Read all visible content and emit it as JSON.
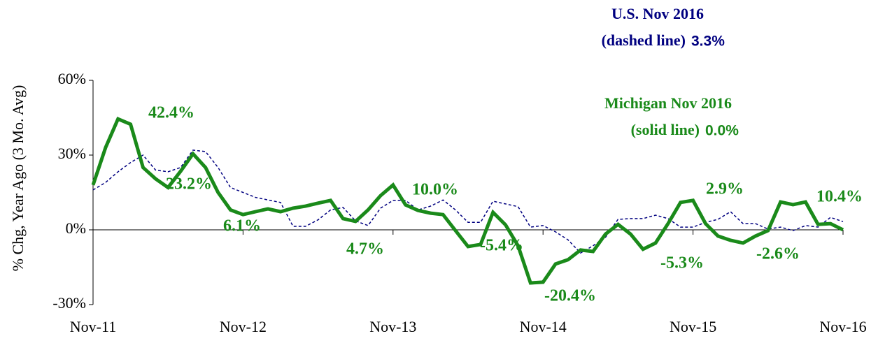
{
  "chart_data": {
    "type": "line",
    "y_axis_label": "% Chg, Year Ago (3 Mo. Avg)",
    "categories": [
      "Nov-11",
      null,
      null,
      null,
      null,
      null,
      null,
      null,
      null,
      null,
      null,
      null,
      "Nov-12",
      null,
      null,
      null,
      null,
      null,
      null,
      null,
      null,
      null,
      null,
      null,
      "Nov-13",
      null,
      null,
      null,
      null,
      null,
      null,
      null,
      null,
      null,
      null,
      null,
      "Nov-14",
      null,
      null,
      null,
      null,
      null,
      null,
      null,
      null,
      null,
      null,
      null,
      "Nov-15",
      null,
      null,
      null,
      null,
      null,
      null,
      null,
      null,
      null,
      null,
      null,
      "Nov-16"
    ],
    "series": [
      {
        "name": "Michigan",
        "color": "#1a8a1a",
        "style": "solid",
        "values": [
          18,
          33,
          44.5,
          42.4,
          25,
          20.5,
          17,
          23.5,
          30.5,
          25,
          15,
          8,
          6.1,
          7.3,
          8.4,
          7.3,
          8.7,
          9.5,
          10.7,
          11.8,
          4.5,
          3.4,
          8,
          13.7,
          18,
          10,
          7.8,
          6.7,
          6.1,
          -0.3,
          -6.7,
          -5.9,
          7,
          2,
          -6.4,
          -21.3,
          -21,
          -13.7,
          -12,
          -8.1,
          -8.7,
          -1.7,
          2.2,
          -1.7,
          -7.8,
          -5.3,
          2.5,
          11,
          11.8,
          2.5,
          -2.5,
          -4.2,
          -5.3,
          -2.5,
          -0.3,
          11.2,
          10.1,
          11.2,
          2.2,
          2.5,
          0
        ]
      },
      {
        "name": "U.S.",
        "color": "#000080",
        "style": "dashed",
        "values": [
          16,
          19,
          23.3,
          27,
          30,
          24,
          23.3,
          25,
          32,
          31.4,
          25,
          17,
          15,
          13,
          12,
          11,
          1.4,
          1.4,
          4,
          8,
          9,
          3.6,
          1.7,
          8.7,
          11.8,
          11.8,
          8,
          9.5,
          12,
          8,
          3,
          3,
          11.5,
          10.4,
          9.3,
          1.1,
          1.7,
          -0.8,
          -4,
          -9.3,
          -6.4,
          -3,
          4.2,
          4.5,
          4.5,
          5.9,
          4.5,
          1.1,
          1.1,
          3,
          4.2,
          7.3,
          2.5,
          2.5,
          0.3,
          1.1,
          -0.3,
          1.7,
          1.1,
          5,
          3.3
        ]
      }
    ],
    "ylim": [
      -30,
      60
    ],
    "yticks": [
      {
        "value": -30,
        "label": "-30%"
      },
      {
        "value": 0,
        "label": "0%"
      },
      {
        "value": 30,
        "label": "30%"
      },
      {
        "value": 60,
        "label": "60%"
      }
    ],
    "annotations": [
      "42.4%",
      "23.2%",
      "6.1%",
      "4.7%",
      "10.0%",
      "-5.4%",
      "-20.4%",
      "2.9%",
      "-5.3%",
      "-2.6%",
      "10.4%"
    ],
    "notes": [
      {
        "line1": "U.S.  Nov 2016",
        "line2": "(dashed line)",
        "value": "3.3%",
        "color": "#000080"
      },
      {
        "line1": "Michigan   Nov 2016",
        "line2": "(solid line)",
        "value": "0.0%",
        "color": "#1a8a1a"
      }
    ]
  }
}
